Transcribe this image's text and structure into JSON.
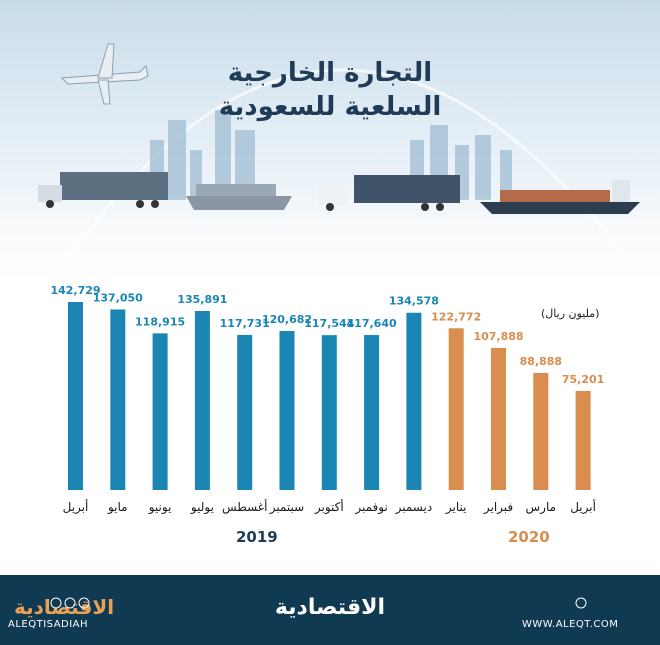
{
  "title_line1": "التجارة الخارجية",
  "title_line2": "السلعية للسعودية",
  "unit_label": "(مليون ريال)",
  "colors": {
    "y2019": "#1b86b3",
    "y2020": "#d98d4e",
    "footer": "#0f3a52",
    "title": "#1f3b57"
  },
  "chart_data": {
    "type": "bar",
    "categories": [
      "أبريل",
      "مايو",
      "يونيو",
      "يوليو",
      "أغسطس",
      "سبتمبر",
      "أكتوبر",
      "نوفمبر",
      "ديسمبر",
      "يناير",
      "فبراير",
      "مارس",
      "أبريل"
    ],
    "values": [
      142729,
      137050,
      118915,
      135891,
      117731,
      120682,
      117544,
      117640,
      134578,
      122772,
      107888,
      88888,
      75201
    ],
    "value_labels": [
      "142,729",
      "137,050",
      "118,915",
      "135,891",
      "117,731",
      "120,682",
      "117,544",
      "117,640",
      "134,578",
      "122,772",
      "107,888",
      "88,888",
      "75,201"
    ],
    "year_of_bar": [
      "2019",
      "2019",
      "2019",
      "2019",
      "2019",
      "2019",
      "2019",
      "2019",
      "2019",
      "2020",
      "2020",
      "2020",
      "2020"
    ],
    "years": [
      "2019",
      "2020"
    ],
    "ylabel": "(مليون ريال)",
    "grid": false
  },
  "footer": {
    "logo": "الاقتصادية",
    "brand": "الاقتصادية",
    "url": "WWW.ALEQT.COM",
    "handle": "ALEQTISADIAH"
  }
}
